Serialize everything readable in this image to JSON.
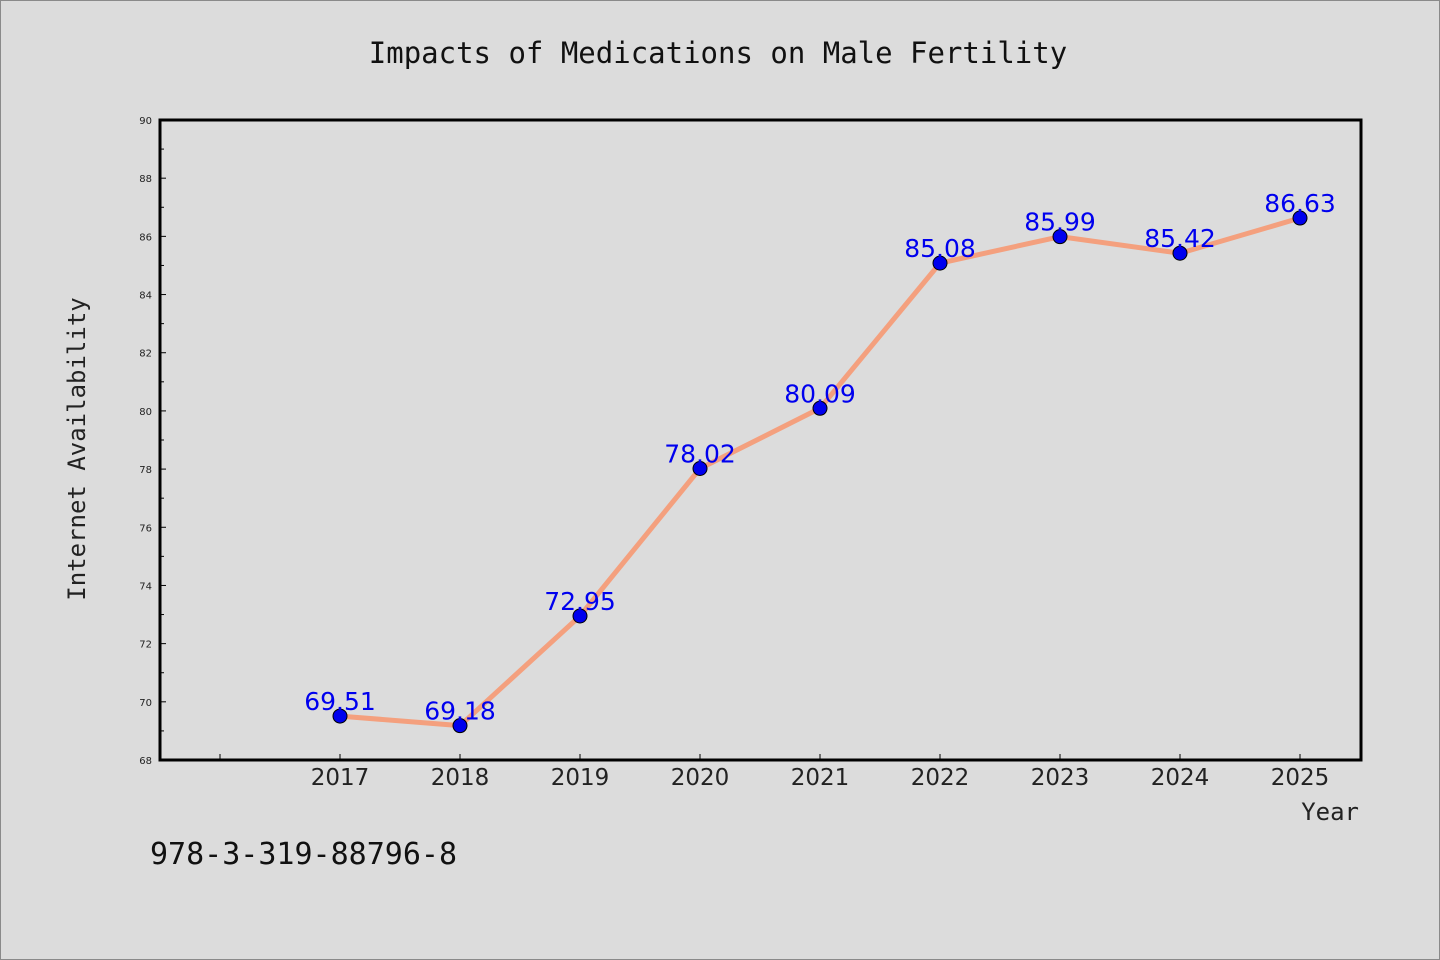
{
  "chart_data": {
    "type": "line",
    "title": "Impacts of Medications on Male Fertility",
    "xlabel": "Year",
    "ylabel": "Internet Availability",
    "categories": [
      "2017",
      "2018",
      "2019",
      "2020",
      "2021",
      "2022",
      "2023",
      "2024",
      "2025"
    ],
    "series": [
      {
        "values": [
          69.51,
          69.18,
          72.95,
          78.02,
          80.09,
          85.08,
          85.99,
          85.42,
          86.63
        ],
        "labels": [
          "69.51",
          "69.18",
          "72.95",
          "78.02",
          "80.09",
          "85.08",
          "85.99",
          "85.42",
          "86.63"
        ]
      }
    ],
    "ylim": [
      68,
      90
    ],
    "ytick_labels": [
      "68",
      "70",
      "72",
      "74",
      "76",
      "78",
      "80",
      "82",
      "84",
      "86",
      "88",
      "90"
    ],
    "grid": false,
    "colors": {
      "line": "#f4a07e",
      "marker": "#0000ee",
      "data_label": "#0000ee",
      "axes": "#000000",
      "background": "#dcdcdc"
    }
  },
  "annotation": "978-3-319-88796-8"
}
